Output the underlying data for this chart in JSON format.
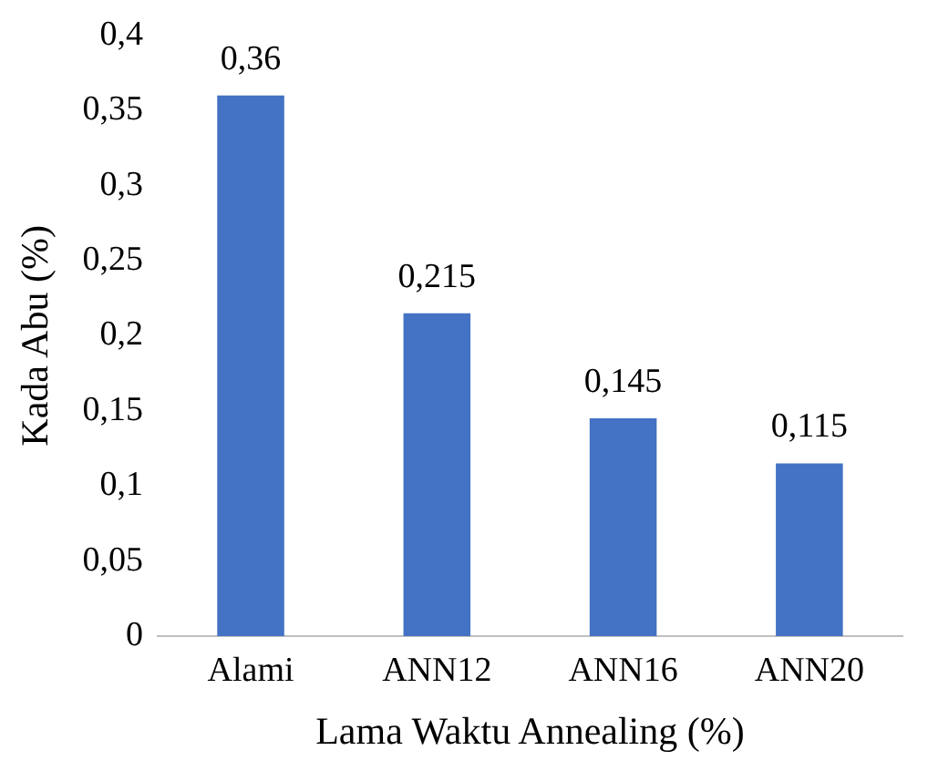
{
  "chart_data": {
    "type": "bar",
    "xlabel": "Lama Waktu Annealing (%)",
    "ylabel": "Kada Abu (%)",
    "categories": [
      "Alami",
      "ANN12",
      "ANN16",
      "ANN20"
    ],
    "values": [
      0.36,
      0.215,
      0.145,
      0.115
    ],
    "value_labels": [
      "0,36",
      "0,215",
      "0,145",
      "0,115"
    ],
    "color": "#4472c4",
    "ylim": [
      0,
      0.4
    ],
    "yticks": [
      {
        "value": 0,
        "label": "0"
      },
      {
        "value": 0.05,
        "label": "0,05"
      },
      {
        "value": 0.1,
        "label": "0,1"
      },
      {
        "value": 0.15,
        "label": "0,15"
      },
      {
        "value": 0.2,
        "label": "0,2"
      },
      {
        "value": 0.25,
        "label": "0,25"
      },
      {
        "value": 0.3,
        "label": "0,3"
      },
      {
        "value": 0.35,
        "label": "0,35"
      },
      {
        "value": 0.4,
        "label": "0,4"
      }
    ],
    "grid": false,
    "legend": false
  }
}
